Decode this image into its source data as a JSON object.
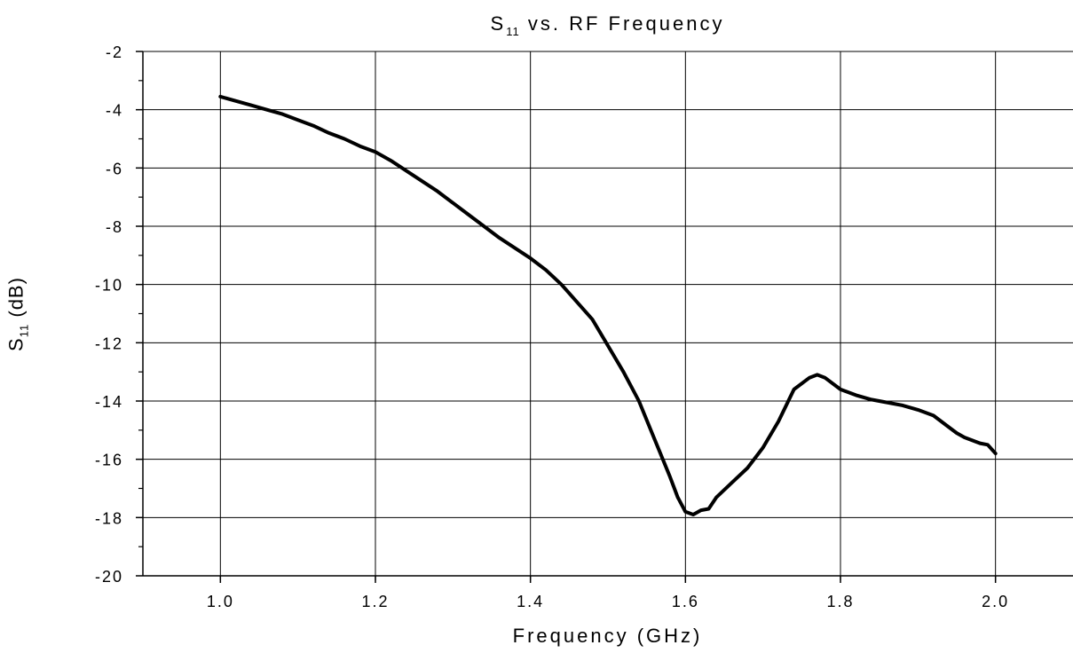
{
  "chart_data": {
    "type": "line",
    "title": {
      "main": "S",
      "sub": "11",
      "rest": " vs. RF Frequency"
    },
    "xlabel": "Frequency (GHz)",
    "ylabel": {
      "main": "S",
      "sub": "11",
      "rest": " (dB)"
    },
    "xlim": [
      0.9,
      2.1
    ],
    "ylim": [
      -20,
      -2
    ],
    "x_ticks": [
      1.0,
      1.2,
      1.4,
      1.6,
      1.8,
      2.0
    ],
    "x_tick_labels": [
      "1.0",
      "1.2",
      "1.4",
      "1.6",
      "1.8",
      "2.0"
    ],
    "y_ticks": [
      -20,
      -18,
      -16,
      -14,
      -12,
      -10,
      -8,
      -6,
      -4,
      -2
    ],
    "y_tick_labels": [
      "-20",
      "-18",
      "-16",
      "-14",
      "-12",
      "-10",
      "-8",
      "-6",
      "-4",
      "-2"
    ],
    "grid": true,
    "series": [
      {
        "color": "#000000",
        "x": [
          1.0,
          1.02,
          1.04,
          1.06,
          1.08,
          1.1,
          1.12,
          1.14,
          1.16,
          1.18,
          1.2,
          1.22,
          1.24,
          1.26,
          1.28,
          1.3,
          1.32,
          1.34,
          1.36,
          1.38,
          1.4,
          1.42,
          1.44,
          1.46,
          1.48,
          1.5,
          1.52,
          1.54,
          1.56,
          1.58,
          1.59,
          1.6,
          1.61,
          1.62,
          1.63,
          1.64,
          1.66,
          1.68,
          1.7,
          1.72,
          1.74,
          1.76,
          1.77,
          1.78,
          1.8,
          1.82,
          1.84,
          1.86,
          1.88,
          1.9,
          1.92,
          1.94,
          1.95,
          1.96,
          1.98,
          1.99,
          2.0
        ],
        "y": [
          -3.55,
          -3.7,
          -3.85,
          -4.0,
          -4.15,
          -4.35,
          -4.55,
          -4.8,
          -5.0,
          -5.25,
          -5.45,
          -5.75,
          -6.1,
          -6.45,
          -6.8,
          -7.2,
          -7.6,
          -8.0,
          -8.4,
          -8.75,
          -9.1,
          -9.5,
          -10.0,
          -10.6,
          -11.2,
          -12.1,
          -13.0,
          -14.0,
          -15.3,
          -16.6,
          -17.3,
          -17.8,
          -17.9,
          -17.75,
          -17.7,
          -17.3,
          -16.8,
          -16.3,
          -15.6,
          -14.7,
          -13.6,
          -13.2,
          -13.1,
          -13.2,
          -13.6,
          -13.8,
          -13.95,
          -14.05,
          -14.15,
          -14.3,
          -14.5,
          -14.9,
          -15.1,
          -15.25,
          -15.45,
          -15.5,
          -15.8
        ]
      }
    ]
  }
}
